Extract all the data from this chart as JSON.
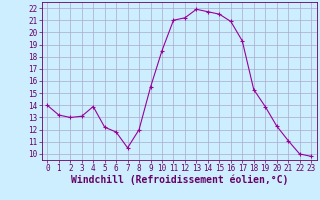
{
  "x": [
    0,
    1,
    2,
    3,
    4,
    5,
    6,
    7,
    8,
    9,
    10,
    11,
    12,
    13,
    14,
    15,
    16,
    17,
    18,
    19,
    20,
    21,
    22,
    23
  ],
  "y": [
    14.0,
    13.2,
    13.0,
    13.1,
    13.9,
    12.2,
    11.8,
    10.5,
    12.0,
    15.5,
    18.5,
    21.0,
    21.2,
    21.9,
    21.7,
    21.5,
    20.9,
    19.3,
    15.3,
    13.9,
    12.3,
    11.1,
    10.0,
    9.8
  ],
  "line_color": "#990099",
  "marker": "+",
  "marker_size": 3,
  "bg_color": "#cceeff",
  "grid_color": "#aaaacc",
  "xlabel": "Windchill (Refroidissement éolien,°C)",
  "ylim": [
    9.5,
    22.5
  ],
  "xlim": [
    -0.5,
    23.5
  ],
  "yticks": [
    10,
    11,
    12,
    13,
    14,
    15,
    16,
    17,
    18,
    19,
    20,
    21,
    22
  ],
  "xticks": [
    0,
    1,
    2,
    3,
    4,
    5,
    6,
    7,
    8,
    9,
    10,
    11,
    12,
    13,
    14,
    15,
    16,
    17,
    18,
    19,
    20,
    21,
    22,
    23
  ],
  "tick_fontsize": 5.5,
  "xlabel_fontsize": 7.0,
  "tick_color": "#660066",
  "spine_color": "#660066"
}
